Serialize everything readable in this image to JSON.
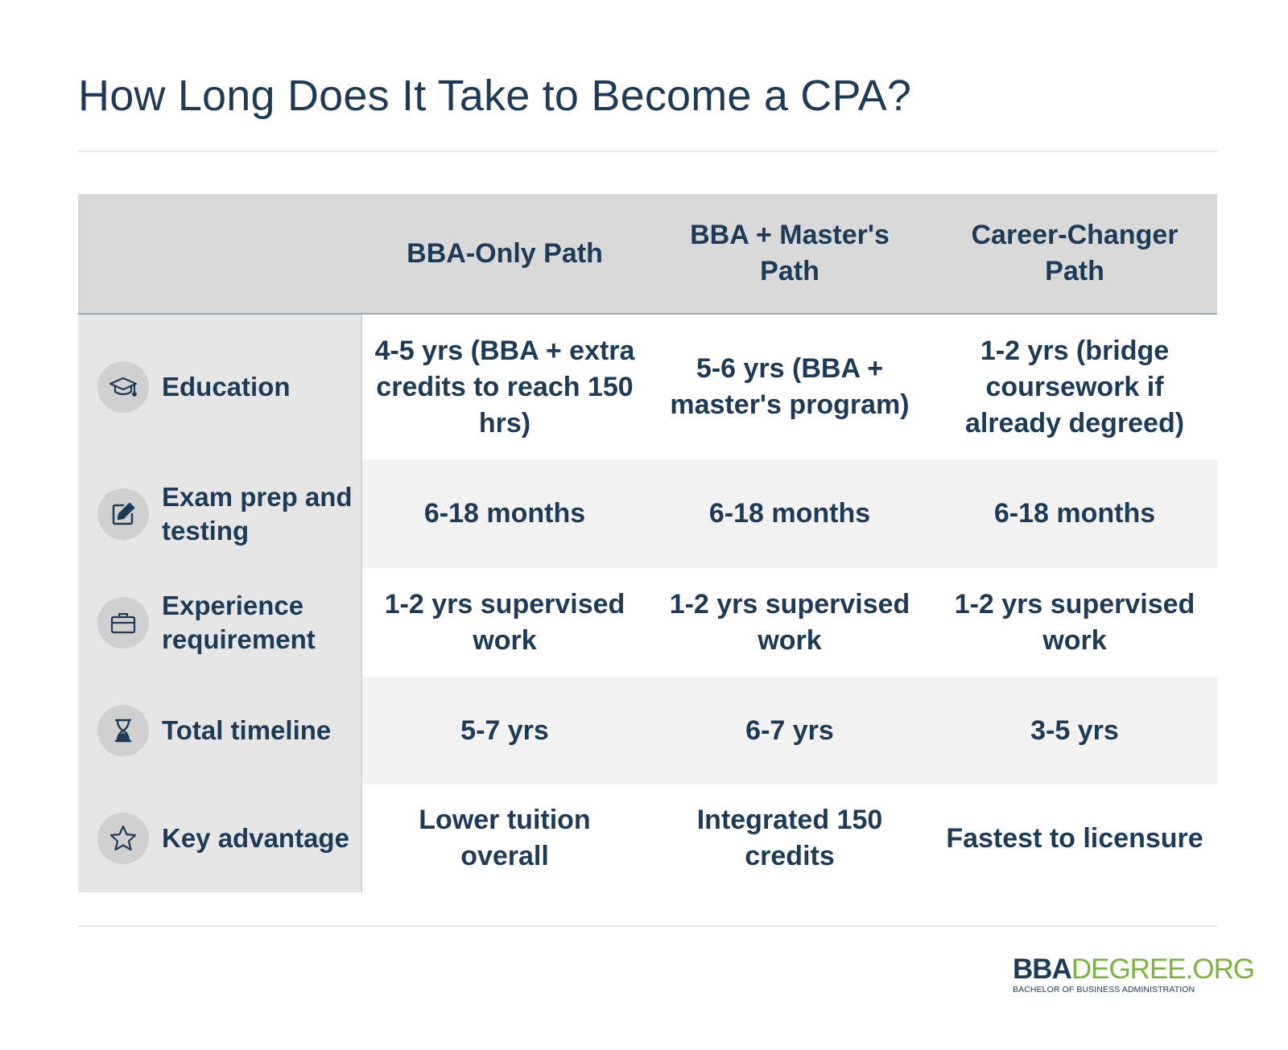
{
  "title": "How Long Does It Take to Become a CPA?",
  "table": {
    "columns": [
      "BBA-Only Path",
      "BBA + Master's Path",
      "Career-Changer Path"
    ],
    "rows": [
      {
        "label": "Education",
        "icon": "graduation-cap-icon",
        "cells": [
          "4-5 yrs (BBA + extra credits to reach 150 hrs)",
          "5-6 yrs (BBA + master's program)",
          "1-2 yrs (bridge coursework if already degreed)"
        ]
      },
      {
        "label": "Exam prep and testing",
        "icon": "pencil-square-icon",
        "cells": [
          "6-18 months",
          "6-18 months",
          "6-18 months"
        ]
      },
      {
        "label": "Experience requirement",
        "icon": "briefcase-icon",
        "cells": [
          "1-2 yrs supervised work",
          "1-2 yrs supervised work",
          "1-2 yrs supervised work"
        ]
      },
      {
        "label": "Total timeline",
        "icon": "hourglass-icon",
        "cells": [
          "5-7 yrs",
          "6-7 yrs",
          "3-5 yrs"
        ]
      },
      {
        "label": "Key advantage",
        "icon": "star-icon",
        "cells": [
          "Lower tuition overall",
          "Integrated 150 credits",
          "Fastest to licensure"
        ]
      }
    ]
  },
  "logo": {
    "bold": "BBA",
    "light": "DEGREE.ORG",
    "tagline": "BACHELOR OF BUSINESS ADMINISTRATION"
  },
  "colors": {
    "text": "#1d3a57",
    "header_bg": "#d9d9d9",
    "label_bg": "#e6e6e6",
    "alt_row_bg": "#f2f2f2",
    "logo_accent": "#7bb342"
  }
}
